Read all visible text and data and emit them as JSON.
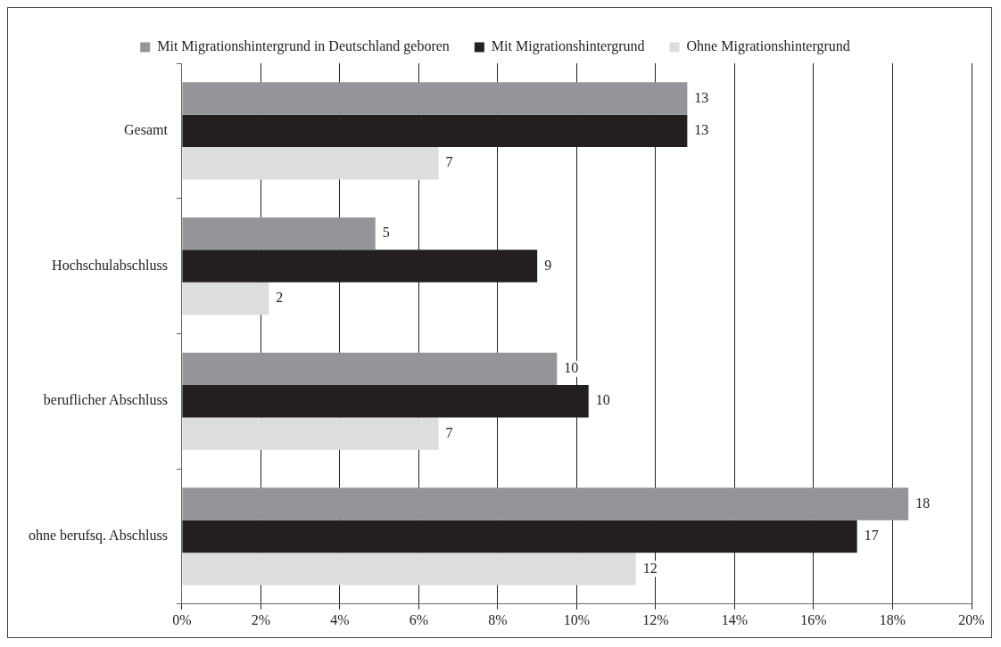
{
  "chart_data": {
    "type": "bar",
    "orientation": "horizontal",
    "categories": [
      "Gesamt",
      "Hochschulabschluss",
      "beruflicher Abschluss",
      "ohne berufsq. Abschluss"
    ],
    "series": [
      {
        "name": "Mit Migrationshintergrund in Deutschland geboren",
        "color": "#939598",
        "values": [
          12.8,
          4.9,
          9.5,
          18.4
        ],
        "value_labels": [
          "13",
          "5",
          "10",
          "18"
        ]
      },
      {
        "name": "Mit Migrationshintergrund",
        "color": "#231f20",
        "values": [
          12.8,
          9.0,
          10.3,
          17.1
        ],
        "value_labels": [
          "13",
          "9",
          "10",
          "17"
        ]
      },
      {
        "name": "Ohne Migrationshintergrund",
        "color": "#dcddde",
        "values": [
          6.5,
          2.2,
          6.5,
          11.5
        ],
        "value_labels": [
          "7",
          "2",
          "7",
          "12"
        ]
      }
    ],
    "xlim": [
      0,
      20
    ],
    "xticks": [
      {
        "value": 0,
        "label": "0%"
      },
      {
        "value": 2,
        "label": "2%"
      },
      {
        "value": 4,
        "label": "4%"
      },
      {
        "value": 6,
        "label": "6%"
      },
      {
        "value": 8,
        "label": "8%"
      },
      {
        "value": 10,
        "label": "10%"
      },
      {
        "value": 12,
        "label": "12%"
      },
      {
        "value": 14,
        "label": "14%"
      },
      {
        "value": 16,
        "label": "16%"
      },
      {
        "value": 18,
        "label": "18%"
      },
      {
        "value": 20,
        "label": "20%"
      }
    ],
    "grid": "x",
    "legend": "top"
  }
}
